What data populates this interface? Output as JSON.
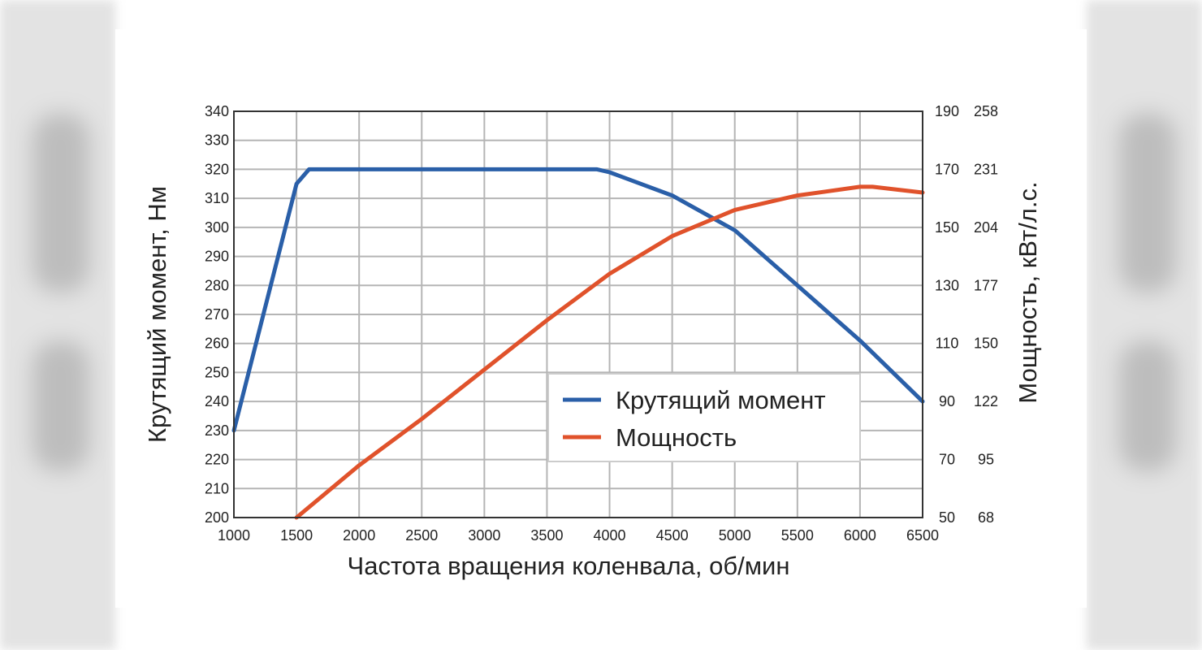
{
  "chart_data": {
    "type": "line",
    "x": [
      1000,
      1500,
      1600,
      2000,
      2500,
      3000,
      3500,
      3900,
      4000,
      4500,
      5000,
      5500,
      6000,
      6100,
      6500
    ],
    "xlabel": "Частота вращения коленвала, об/мин",
    "xlim": [
      1000,
      6500
    ],
    "x_ticks": [
      "1000",
      "1500",
      "2000",
      "2500",
      "3000",
      "3500",
      "4000",
      "4500",
      "5000",
      "5500",
      "6000",
      "6500"
    ],
    "y_left": {
      "label": "Крутящий момент, Нм",
      "lim": [
        200,
        340
      ],
      "ticks": [
        "200",
        "210",
        "220",
        "230",
        "240",
        "250",
        "260",
        "270",
        "280",
        "290",
        "300",
        "310",
        "320",
        "330",
        "340"
      ]
    },
    "y_right": {
      "label": "Мощность, кВт/л.с.",
      "lim": [
        50,
        190
      ],
      "ticks_kw": [
        "50",
        "70",
        "90",
        "110",
        "130",
        "150",
        "170",
        "190"
      ],
      "ticks_hp": [
        "68",
        "95",
        "122",
        "150",
        "177",
        "204",
        "231",
        "258"
      ]
    },
    "series": [
      {
        "name": "Крутящий момент",
        "axis": "left",
        "color": "#2a5fa8",
        "x": [
          1000,
          1500,
          1600,
          2000,
          2500,
          3000,
          3500,
          3900,
          4000,
          4500,
          5000,
          5500,
          6000,
          6500
        ],
        "values": [
          230,
          315,
          320,
          320,
          320,
          320,
          320,
          320,
          319,
          311,
          299,
          280,
          261,
          240
        ]
      },
      {
        "name": "Мощность",
        "axis": "right",
        "color": "#e0522b",
        "x": [
          1500,
          2000,
          2500,
          3000,
          3500,
          4000,
          4500,
          5000,
          5500,
          6000,
          6100,
          6500
        ],
        "values": [
          50,
          68,
          84,
          101,
          118,
          134,
          147,
          156,
          161,
          164,
          164,
          162
        ]
      }
    ],
    "legend": {
      "position": "lower-right",
      "items": [
        "Крутящий момент",
        "Мощность"
      ]
    },
    "grid": true
  }
}
